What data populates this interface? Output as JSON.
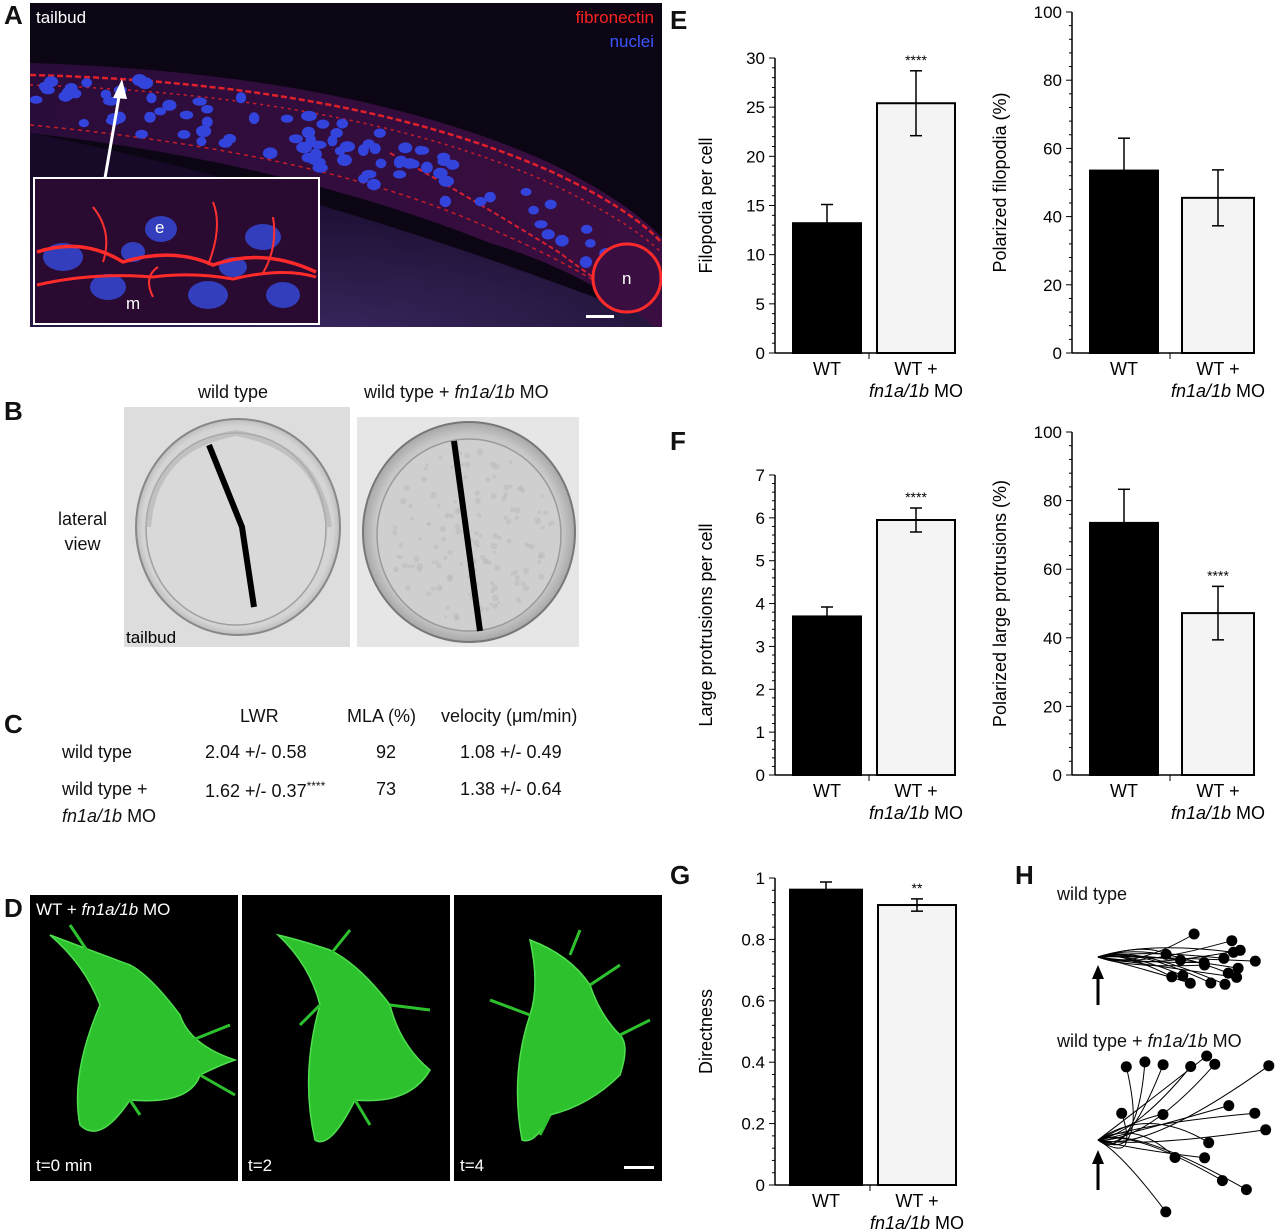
{
  "panels": {
    "A": {
      "letter": "A",
      "stage_label": "tailbud",
      "legend": {
        "channel1": "fibronectin",
        "channel2": "nuclei",
        "color1": "#ff2222",
        "color2": "#3344ff"
      },
      "inset_labels": {
        "e": "e",
        "m": "m"
      },
      "notochord_label": "n"
    },
    "B": {
      "letter": "B",
      "title_wt": "wild type",
      "title_mo_prefix": "wild type + ",
      "title_mo_italic": "fn1a/1b",
      "title_mo_suffix": " MO",
      "side_label_line1": "lateral",
      "side_label_line2": "view",
      "stage_label": "tailbud"
    },
    "C": {
      "letter": "C",
      "headers": [
        "LWR",
        "MLA (%)",
        "velocity (μm/min)"
      ],
      "rows": [
        {
          "label": "wild type",
          "label_italic": "",
          "label_suffix": "",
          "lwr": "2.04 +/- 0.58",
          "sig": "",
          "mla": "92",
          "velocity": "1.08 +/- 0.49"
        },
        {
          "label": "wild type +",
          "label_italic": "fn1a/1b",
          "label_suffix": " MO",
          "lwr": "1.62 +/- 0.37",
          "sig": "****",
          "mla": "73",
          "velocity": "1.38 +/- 0.64"
        }
      ]
    },
    "D": {
      "letter": "D",
      "label_prefix": "WT + ",
      "label_italic": "fn1a/1b",
      "label_suffix": " MO",
      "timepoints": [
        "t=0 min",
        "t=2",
        "t=4"
      ]
    },
    "E": {
      "letter": "E"
    },
    "F": {
      "letter": "F"
    },
    "G": {
      "letter": "G"
    },
    "H": {
      "letter": "H",
      "label_wt": "wild type",
      "label_mo_prefix": "wild type + ",
      "label_mo_italic": "fn1a/1b",
      "label_mo_suffix": " MO"
    }
  },
  "chart_data": [
    {
      "id": "E-left",
      "type": "bar",
      "categories": [
        "WT",
        "WT + fn1a/1b MO"
      ],
      "cat_line1": [
        "WT",
        "WT +"
      ],
      "cat_line2": [
        "",
        "fn1a/1b"
      ],
      "cat_line2_suffix": [
        "",
        " MO"
      ],
      "values": [
        13.2,
        25.4
      ],
      "errors": [
        1.9,
        3.3
      ],
      "sig": [
        "",
        "****"
      ],
      "ylabel": "Filopodia per cell",
      "ylim": [
        0,
        30
      ],
      "yticks": [
        0,
        5,
        10,
        15,
        20,
        25,
        30
      ]
    },
    {
      "id": "E-right",
      "type": "bar",
      "categories": [
        "WT",
        "WT + fn1a/1b MO"
      ],
      "cat_line1": [
        "WT",
        "WT +"
      ],
      "cat_line2": [
        "",
        "fn1a/1b"
      ],
      "cat_line2_suffix": [
        "",
        " MO"
      ],
      "values": [
        53.5,
        45.5
      ],
      "errors": [
        9.5,
        8.2
      ],
      "sig": [
        "",
        ""
      ],
      "ylabel": "Polarized filopodia (%)",
      "ylim": [
        0,
        100
      ],
      "yticks": [
        0,
        20,
        40,
        60,
        80,
        100
      ]
    },
    {
      "id": "F-left",
      "type": "bar",
      "categories": [
        "WT",
        "WT + fn1a/1b MO"
      ],
      "cat_line1": [
        "WT",
        "WT +"
      ],
      "cat_line2": [
        "",
        "fn1a/1b"
      ],
      "cat_line2_suffix": [
        "",
        " MO"
      ],
      "values": [
        3.7,
        5.95
      ],
      "errors": [
        0.22,
        0.28
      ],
      "sig": [
        "",
        "****"
      ],
      "ylabel": "Large protrusions per cell",
      "ylim": [
        0,
        7
      ],
      "yticks": [
        0,
        1,
        2,
        3,
        4,
        5,
        6,
        7
      ]
    },
    {
      "id": "F-right",
      "type": "bar",
      "categories": [
        "WT",
        "WT + fn1a/1b MO"
      ],
      "cat_line1": [
        "WT",
        "WT +"
      ],
      "cat_line2": [
        "",
        "fn1a/1b"
      ],
      "cat_line2_suffix": [
        "",
        " MO"
      ],
      "values": [
        73.5,
        47.2
      ],
      "errors": [
        9.8,
        7.8
      ],
      "sig": [
        "",
        "****"
      ],
      "ylabel": "Polarized large protrusions (%)",
      "ylim": [
        0,
        100
      ],
      "yticks": [
        0,
        20,
        40,
        60,
        80,
        100
      ]
    },
    {
      "id": "G",
      "type": "bar",
      "categories": [
        "WT",
        "WT + fn1a/1b MO"
      ],
      "cat_line1": [
        "WT",
        "WT +"
      ],
      "cat_line2": [
        "",
        "fn1a/1b"
      ],
      "cat_line2_suffix": [
        "",
        " MO"
      ],
      "values": [
        0.962,
        0.912
      ],
      "errors": [
        0.025,
        0.02
      ],
      "sig": [
        "",
        "**"
      ],
      "ylabel": "Directness",
      "ylim": [
        0,
        1
      ],
      "yticks": [
        0,
        0.2,
        0.4,
        0.6,
        0.8,
        1
      ],
      "ytick_labels": [
        "0",
        "0.2",
        "0.4",
        "0.6",
        "0.8",
        "1"
      ]
    }
  ],
  "style": {
    "bar_fill": [
      "#000000",
      "#f4f4f4"
    ]
  }
}
